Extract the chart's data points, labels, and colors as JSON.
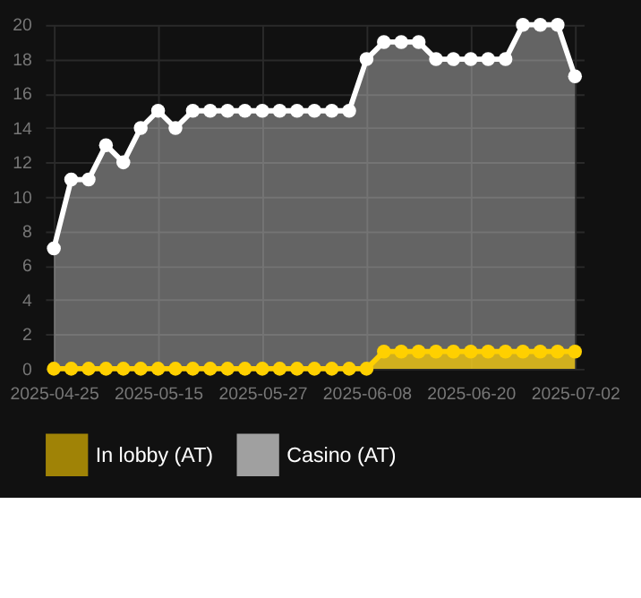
{
  "chart_data": {
    "type": "area",
    "categories": [
      "2025-04-25",
      null,
      null,
      null,
      null,
      null,
      "2025-05-15",
      null,
      null,
      null,
      null,
      null,
      "2025-05-27",
      null,
      null,
      null,
      null,
      null,
      "2025-06-08",
      null,
      null,
      null,
      null,
      null,
      "2025-06-20",
      null,
      null,
      null,
      null,
      null,
      "2025-07-02"
    ],
    "series": [
      {
        "name": "In lobby (AT)",
        "color": "#ffd000",
        "values": [
          0,
          0,
          0,
          0,
          0,
          0,
          0,
          0,
          0,
          0,
          0,
          0,
          0,
          0,
          0,
          0,
          0,
          0,
          0,
          1,
          1,
          1,
          1,
          1,
          1,
          1,
          1,
          1,
          1,
          1,
          1
        ]
      },
      {
        "name": "Casino (AT)",
        "color": "#ffffff",
        "values": [
          7,
          11,
          11,
          13,
          12,
          14,
          15,
          14,
          15,
          15,
          15,
          15,
          15,
          15,
          15,
          15,
          15,
          15,
          18,
          19,
          19,
          19,
          18,
          18,
          18,
          18,
          18,
          20,
          20,
          20,
          17
        ]
      }
    ],
    "ylim": [
      0,
      20
    ],
    "yticks": [
      0,
      2,
      4,
      6,
      8,
      10,
      12,
      14,
      16,
      18,
      20
    ],
    "grid": true,
    "legend": "bottom",
    "marker": "circle"
  }
}
